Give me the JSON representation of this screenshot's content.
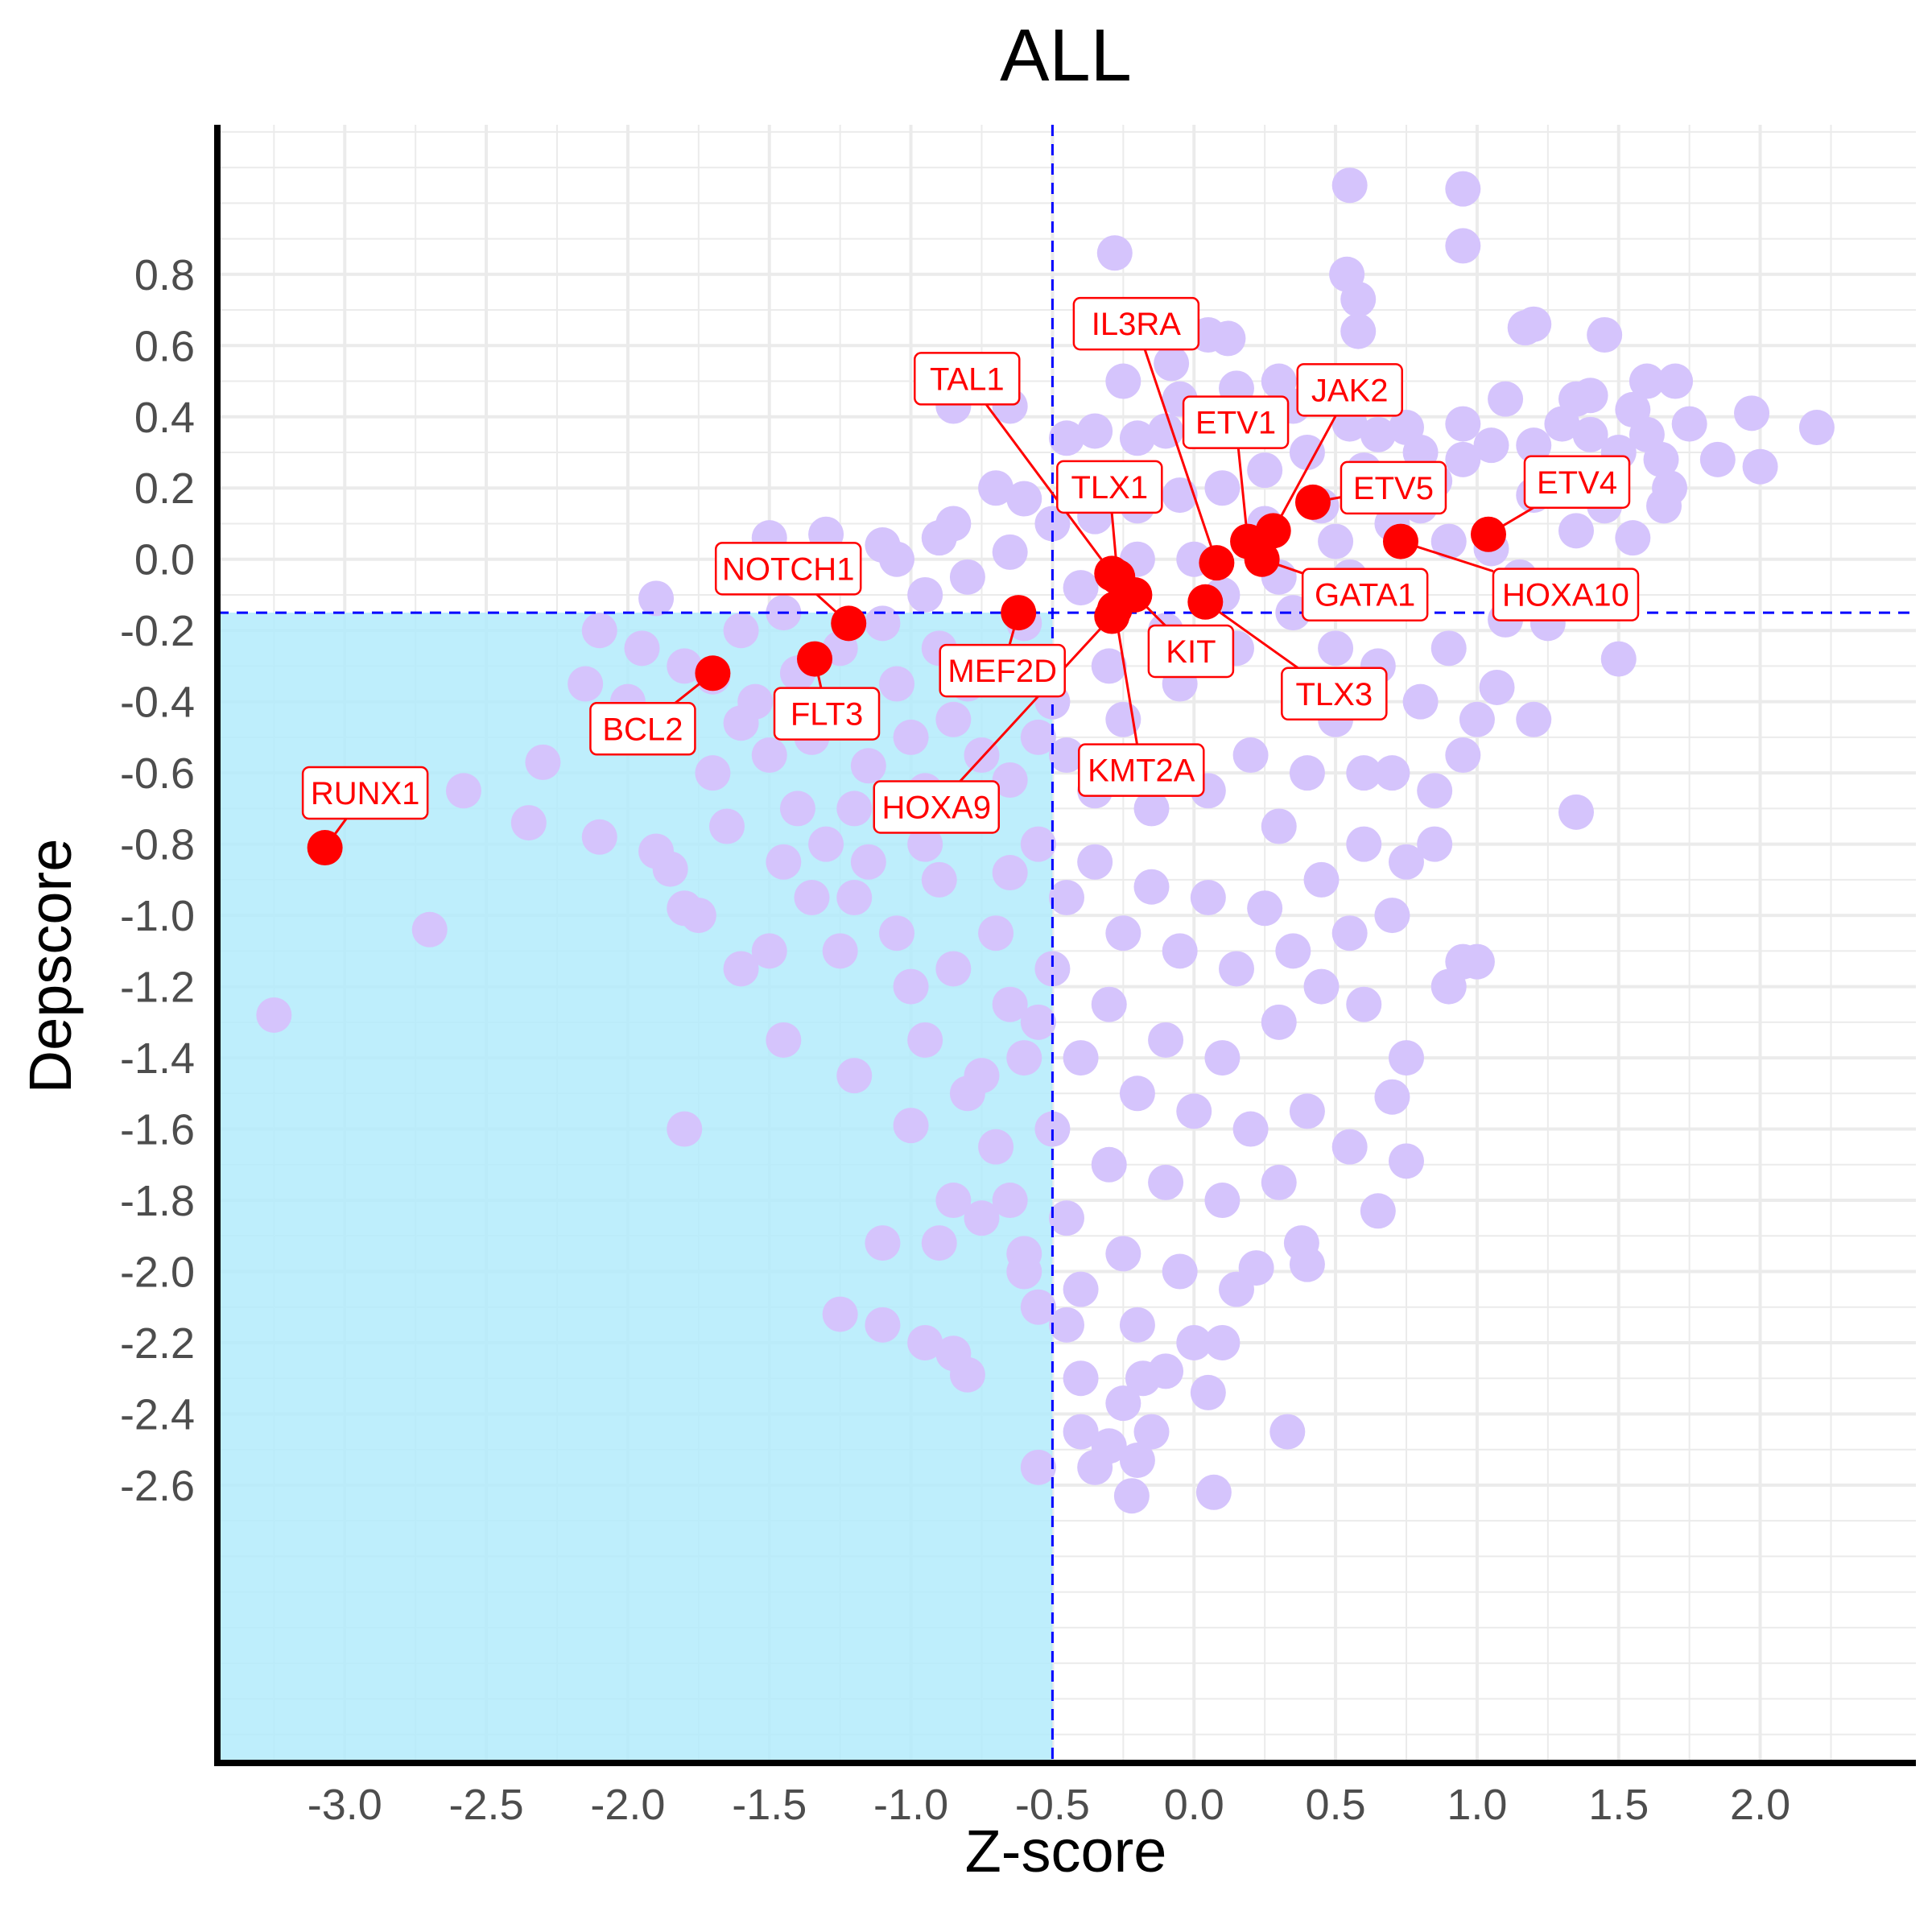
{
  "chart_data": {
    "type": "scatter",
    "title": "ALL",
    "xlabel": "Z-score",
    "ylabel": "Depscore",
    "xlim": [
      -3.45,
      2.55
    ],
    "ylim": [
      -3.38,
      1.22
    ],
    "x_ticks": [
      -3.0,
      -2.5,
      -2.0,
      -1.5,
      -1.0,
      -0.5,
      0.0,
      0.5,
      1.0,
      1.5,
      2.0
    ],
    "x_tick_labels": [
      "-3.0",
      "-2.5",
      "-2.0",
      "-1.5",
      "-1.0",
      "-0.5",
      "0.0",
      "0.5",
      "1.0",
      "1.5",
      "2.0"
    ],
    "y_ticks": [
      0.8,
      0.6,
      0.4,
      0.2,
      0.0,
      -0.2,
      -0.4,
      -0.6,
      -0.8,
      -1.0,
      -1.2,
      -1.4,
      -1.6,
      -1.8,
      -2.0,
      -2.2,
      -2.4,
      -2.6
    ],
    "y_tick_labels": [
      "0.8",
      "0.6",
      "0.4",
      "0.2",
      "0.0",
      "-0.2",
      "-0.4",
      "-0.6",
      "-0.8",
      "-1.0",
      "-1.2",
      "-1.4",
      "-1.6",
      "-1.8",
      "-2.0",
      "-2.2",
      "-2.4",
      "-2.6"
    ],
    "grid": true,
    "threshold_x": -0.5,
    "threshold_y": -0.15,
    "highlight_region": "x < -0.5 and y < -0.15",
    "colors": {
      "background_points": "#d5c4fc",
      "highlighted_points": "#ff0000",
      "label_text": "#ff0000",
      "threshold_lines": "#0000ff",
      "region_fill": "#b3ebfc",
      "grid": "#ebebeb"
    },
    "background_points": [
      [
        0.55,
        1.05
      ],
      [
        0.95,
        1.04
      ],
      [
        0.95,
        0.88
      ],
      [
        -0.28,
        0.86
      ],
      [
        0.54,
        0.8
      ],
      [
        0.58,
        0.73
      ],
      [
        0.58,
        0.64
      ],
      [
        0.05,
        0.63
      ],
      [
        0.12,
        0.62
      ],
      [
        -0.08,
        0.55
      ],
      [
        1.17,
        0.65
      ],
      [
        1.2,
        0.66
      ],
      [
        1.45,
        0.63
      ],
      [
        1.6,
        0.5
      ],
      [
        1.7,
        0.5
      ],
      [
        1.4,
        0.46
      ],
      [
        1.55,
        0.42
      ],
      [
        1.75,
        0.38
      ],
      [
        1.97,
        0.41
      ],
      [
        2.2,
        0.37
      ],
      [
        1.85,
        0.28
      ],
      [
        2.0,
        0.26
      ],
      [
        1.65,
        0.28
      ],
      [
        1.68,
        0.2
      ],
      [
        1.66,
        0.15
      ],
      [
        1.55,
        0.06
      ],
      [
        1.5,
        -0.28
      ],
      [
        1.1,
        -0.17
      ],
      [
        1.25,
        -0.18
      ],
      [
        1.07,
        -0.36
      ],
      [
        1.2,
        -0.45
      ],
      [
        1.35,
        -0.71
      ],
      [
        0.95,
        -1.13
      ],
      [
        1.0,
        -1.13
      ],
      [
        0.9,
        -1.2
      ],
      [
        0.75,
        -1.4
      ],
      [
        0.7,
        -1.51
      ],
      [
        0.75,
        -1.69
      ],
      [
        0.55,
        -1.65
      ],
      [
        0.65,
        -1.83
      ],
      [
        0.4,
        -1.98
      ],
      [
        0.38,
        -1.92
      ],
      [
        0.22,
        -1.99
      ],
      [
        0.33,
        -2.45
      ],
      [
        0.07,
        -2.62
      ],
      [
        0.05,
        -2.34
      ],
      [
        -0.1,
        -2.28
      ],
      [
        -0.18,
        -2.3
      ],
      [
        -0.2,
        -2.53
      ],
      [
        -0.22,
        -2.63
      ],
      [
        -0.25,
        -2.37
      ],
      [
        -0.3,
        -2.49
      ],
      [
        -0.35,
        -2.55
      ],
      [
        -0.4,
        -2.45
      ],
      [
        -0.55,
        -2.55
      ],
      [
        -0.8,
        -2.29
      ],
      [
        -0.85,
        -2.23
      ],
      [
        -0.95,
        -2.2
      ],
      [
        -1.1,
        -2.15
      ],
      [
        -1.25,
        -2.12
      ],
      [
        -1.1,
        -1.92
      ],
      [
        -0.9,
        -1.92
      ],
      [
        -0.85,
        -1.8
      ],
      [
        -1.0,
        -1.59
      ],
      [
        -1.2,
        -1.45
      ],
      [
        -1.45,
        -1.35
      ],
      [
        -1.6,
        -1.15
      ],
      [
        -1.75,
        -1.0
      ],
      [
        -1.85,
        -0.87
      ],
      [
        -1.9,
        -0.82
      ],
      [
        -2.1,
        -0.78
      ],
      [
        -2.35,
        -0.74
      ],
      [
        -2.7,
        -1.04
      ],
      [
        -3.25,
        -1.28
      ],
      [
        -2.58,
        -0.65
      ],
      [
        -2.3,
        -0.57
      ],
      [
        -2.0,
        -0.5
      ],
      [
        -2.15,
        -0.35
      ],
      [
        -2.1,
        -0.2
      ],
      [
        -1.9,
        -0.11
      ],
      [
        -1.7,
        -0.33
      ],
      [
        -1.8,
        -0.3
      ],
      [
        -1.6,
        -0.46
      ],
      [
        -1.5,
        -0.55
      ],
      [
        -1.4,
        -0.7
      ],
      [
        -1.3,
        -0.8
      ],
      [
        -1.2,
        -0.95
      ],
      [
        -1.05,
        -1.05
      ],
      [
        -1.0,
        -1.2
      ],
      [
        -0.95,
        -1.35
      ],
      [
        -0.8,
        -1.5
      ],
      [
        -0.7,
        -1.65
      ],
      [
        -0.65,
        -1.8
      ],
      [
        -0.6,
        -1.95
      ],
      [
        -0.55,
        -2.1
      ],
      [
        -0.45,
        -2.15
      ],
      [
        -0.4,
        -2.05
      ],
      [
        -1.8,
        -1.6
      ],
      [
        -1.8,
        -0.98
      ],
      [
        -1.5,
        0.06
      ],
      [
        -1.3,
        0.07
      ],
      [
        -1.1,
        0.04
      ],
      [
        -0.9,
        0.06
      ],
      [
        -0.7,
        0.2
      ],
      [
        -0.6,
        0.17
      ],
      [
        -0.85,
        0.43
      ],
      [
        -0.65,
        0.43
      ],
      [
        -0.45,
        0.34
      ],
      [
        -0.35,
        0.36
      ],
      [
        -0.2,
        0.34
      ],
      [
        -0.1,
        0.36
      ],
      [
        0.05,
        0.37
      ],
      [
        0.2,
        0.4
      ],
      [
        0.35,
        0.43
      ],
      [
        0.55,
        0.38
      ],
      [
        0.75,
        0.37
      ],
      [
        0.95,
        0.38
      ],
      [
        1.05,
        0.32
      ],
      [
        1.2,
        0.32
      ],
      [
        1.3,
        0.38
      ],
      [
        1.4,
        0.35
      ],
      [
        1.3,
        0.22
      ],
      [
        1.2,
        0.18
      ],
      [
        1.45,
        0.15
      ],
      [
        1.35,
        0.08
      ],
      [
        1.15,
        -0.05
      ],
      [
        1.05,
        0.03
      ],
      [
        0.9,
        0.05
      ],
      [
        0.8,
        0.15
      ],
      [
        0.6,
        0.25
      ],
      [
        0.4,
        0.3
      ],
      [
        0.25,
        0.25
      ],
      [
        0.1,
        0.2
      ],
      [
        -0.05,
        0.18
      ],
      [
        -0.2,
        0.15
      ],
      [
        -0.35,
        0.12
      ],
      [
        -0.5,
        0.1
      ],
      [
        -0.65,
        0.02
      ],
      [
        -0.8,
        -0.05
      ],
      [
        -0.95,
        -0.1
      ],
      [
        -1.1,
        -0.18
      ],
      [
        -1.25,
        -0.25
      ],
      [
        -1.4,
        -0.32
      ],
      [
        -1.55,
        -0.4
      ],
      [
        -1.35,
        -0.5
      ],
      [
        -1.15,
        -0.58
      ],
      [
        -0.95,
        -0.65
      ],
      [
        -0.75,
        -0.72
      ],
      [
        -0.55,
        -0.8
      ],
      [
        -0.35,
        -0.85
      ],
      [
        -0.15,
        -0.92
      ],
      [
        0.05,
        -0.95
      ],
      [
        0.25,
        -0.98
      ],
      [
        0.45,
        -0.9
      ],
      [
        0.6,
        -0.8
      ],
      [
        0.7,
        -0.6
      ],
      [
        0.8,
        -0.4
      ],
      [
        0.9,
        -0.25
      ],
      [
        0.75,
        -0.1
      ],
      [
        0.55,
        -0.05
      ],
      [
        0.35,
        -0.15
      ],
      [
        0.15,
        -0.25
      ],
      [
        -0.05,
        -0.35
      ],
      [
        -0.25,
        -0.45
      ],
      [
        -0.45,
        -0.55
      ],
      [
        -0.65,
        -0.62
      ],
      [
        -0.85,
        -0.45
      ],
      [
        -1.05,
        -0.35
      ],
      [
        -0.9,
        -0.25
      ],
      [
        -0.7,
        -0.3
      ],
      [
        -0.5,
        -0.4
      ],
      [
        -0.3,
        -0.3
      ],
      [
        -0.1,
        -0.2
      ],
      [
        0.1,
        -0.1
      ],
      [
        0.3,
        -0.05
      ],
      [
        0.5,
        0.05
      ],
      [
        0.7,
        0.1
      ],
      [
        0.85,
        0.22
      ],
      [
        0.65,
        0.35
      ],
      [
        0.45,
        0.15
      ],
      [
        0.25,
        0.1
      ],
      [
        0.0,
        0.0
      ],
      [
        -0.2,
        0.0
      ],
      [
        -0.4,
        -0.08
      ],
      [
        -0.6,
        -0.18
      ],
      [
        -0.8,
        -0.35
      ],
      [
        -1.0,
        -0.5
      ],
      [
        -1.2,
        -0.7
      ],
      [
        -0.9,
        -0.9
      ],
      [
        -0.7,
        -1.05
      ],
      [
        -0.5,
        -1.15
      ],
      [
        -0.3,
        -1.25
      ],
      [
        -0.1,
        -1.35
      ],
      [
        0.1,
        -1.4
      ],
      [
        0.3,
        -1.3
      ],
      [
        0.45,
        -1.2
      ],
      [
        0.55,
        -1.05
      ],
      [
        0.35,
        -1.1
      ],
      [
        0.15,
        -1.15
      ],
      [
        -0.05,
        -1.1
      ],
      [
        -0.25,
        -1.05
      ],
      [
        -0.45,
        -0.95
      ],
      [
        -0.65,
        -0.88
      ],
      [
        -0.4,
        -1.4
      ],
      [
        -0.2,
        -1.5
      ],
      [
        0.0,
        -1.55
      ],
      [
        0.2,
        -1.6
      ],
      [
        0.4,
        -1.55
      ],
      [
        0.3,
        -1.75
      ],
      [
        0.1,
        -1.8
      ],
      [
        -0.1,
        -1.75
      ],
      [
        -0.3,
        -1.7
      ],
      [
        -0.5,
        -1.6
      ],
      [
        -0.6,
        -1.4
      ],
      [
        -0.45,
        -1.85
      ],
      [
        -0.25,
        -1.95
      ],
      [
        -0.05,
        -2.0
      ],
      [
        0.15,
        -2.05
      ],
      [
        0.0,
        -2.2
      ],
      [
        -0.2,
        -2.15
      ],
      [
        -0.4,
        -2.3
      ],
      [
        -0.15,
        -2.45
      ],
      [
        0.1,
        -2.2
      ],
      [
        -0.6,
        -2.0
      ],
      [
        -0.75,
        -1.85
      ],
      [
        0.6,
        -1.25
      ],
      [
        0.7,
        -1.0
      ],
      [
        0.85,
        -0.8
      ],
      [
        0.95,
        -0.55
      ],
      [
        1.0,
        -0.45
      ],
      [
        0.85,
        -0.65
      ],
      [
        0.75,
        -0.85
      ],
      [
        0.6,
        -0.6
      ],
      [
        0.5,
        -0.45
      ],
      [
        0.4,
        -0.6
      ],
      [
        0.3,
        -0.75
      ],
      [
        0.2,
        -0.55
      ],
      [
        0.05,
        -0.65
      ],
      [
        -0.15,
        -0.7
      ],
      [
        -0.35,
        -0.65
      ],
      [
        -0.55,
        -0.5
      ],
      [
        -0.75,
        -0.55
      ],
      [
        -0.95,
        -0.8
      ],
      [
        -1.15,
        -0.85
      ],
      [
        -1.35,
        -0.95
      ],
      [
        -1.5,
        -1.1
      ],
      [
        -1.25,
        -1.1
      ],
      [
        -0.85,
        -1.15
      ],
      [
        -0.65,
        -1.25
      ],
      [
        -0.75,
        -1.45
      ],
      [
        -0.55,
        -1.3
      ],
      [
        0.5,
        -0.25
      ],
      [
        0.65,
        -0.3
      ],
      [
        -1.6,
        -0.2
      ],
      [
        -1.45,
        -0.15
      ],
      [
        -1.25,
        -0.05
      ],
      [
        -1.05,
        0.0
      ],
      [
        -0.85,
        0.1
      ],
      [
        -1.7,
        -0.6
      ],
      [
        -1.85,
        -0.5
      ],
      [
        -2.0,
        -0.4
      ],
      [
        -1.95,
        -0.25
      ],
      [
        -1.65,
        -0.75
      ],
      [
        -1.45,
        -0.85
      ],
      [
        1.1,
        0.45
      ],
      [
        0.95,
        0.28
      ],
      [
        0.8,
        0.3
      ],
      [
        1.35,
        0.45
      ],
      [
        1.5,
        0.3
      ],
      [
        1.6,
        0.35
      ],
      [
        0.3,
        0.5
      ],
      [
        0.15,
        0.48
      ],
      [
        -0.05,
        0.45
      ],
      [
        -0.25,
        0.5
      ]
    ],
    "labeled_genes": [
      {
        "name": "RUNX1",
        "x": -3.07,
        "y": -0.81
      },
      {
        "name": "BCL2",
        "x": -1.7,
        "y": -0.32
      },
      {
        "name": "FLT3",
        "x": -1.34,
        "y": -0.28
      },
      {
        "name": "NOTCH1",
        "x": -1.22,
        "y": -0.18
      },
      {
        "name": "MEF2D",
        "x": -0.62,
        "y": -0.15
      },
      {
        "name": "HOXA9",
        "x": -0.29,
        "y": -0.16
      },
      {
        "name": "KMT2A",
        "x": -0.28,
        "y": -0.14
      },
      {
        "name": "KIT",
        "x": -0.21,
        "y": -0.1
      },
      {
        "name": "TLX1",
        "x": -0.27,
        "y": -0.05
      },
      {
        "name": "TAL1",
        "x": -0.29,
        "y": -0.04
      },
      {
        "name": "TLX3",
        "x": 0.04,
        "y": -0.12
      },
      {
        "name": "IL3RA",
        "x": 0.08,
        "y": -0.01
      },
      {
        "name": "GATA1",
        "x": 0.24,
        "y": 0.0
      },
      {
        "name": "ETV1",
        "x": 0.19,
        "y": 0.05
      },
      {
        "name": "JAK2",
        "x": 0.28,
        "y": 0.08
      },
      {
        "name": "ETV5",
        "x": 0.42,
        "y": 0.16
      },
      {
        "name": "HOXA10",
        "x": 0.73,
        "y": 0.05
      },
      {
        "name": "ETV4",
        "x": 1.04,
        "y": 0.07
      }
    ]
  }
}
